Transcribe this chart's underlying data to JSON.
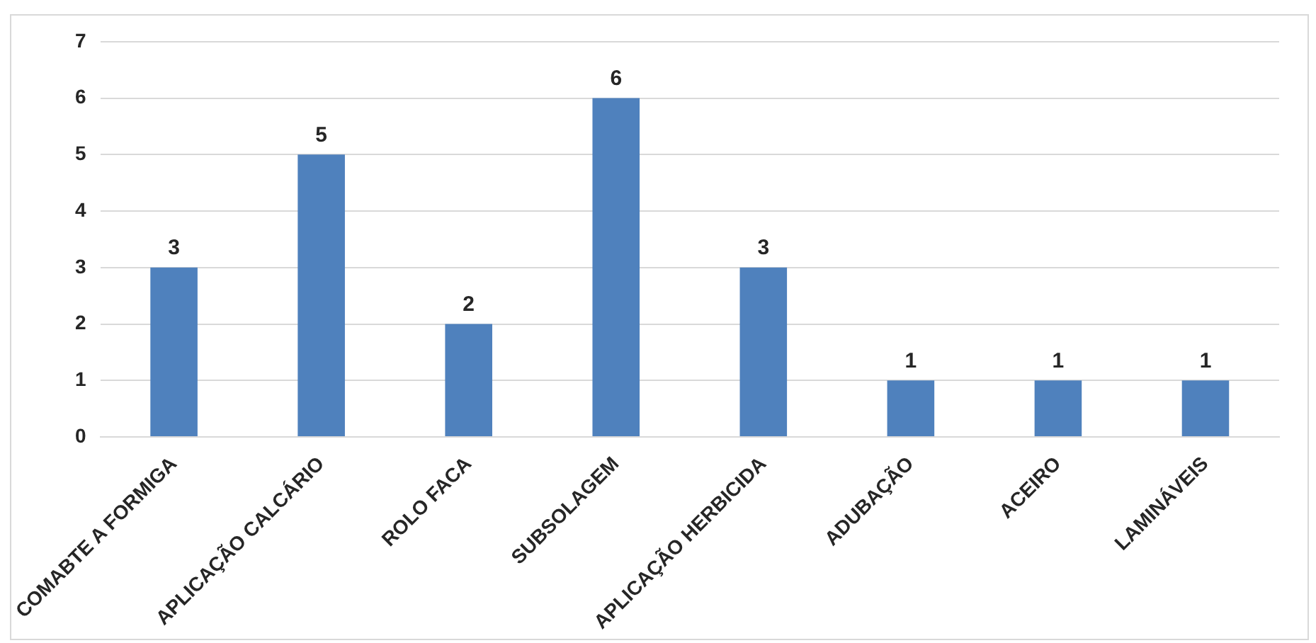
{
  "chart_data": {
    "type": "bar",
    "categories": [
      "COMABTE A FORMIGA",
      "APLICAÇÃO CALCÁRIO",
      "ROLO FACA",
      "SUBSOLAGEM",
      "APLICAÇÃO HERBICIDA",
      "ADUBAÇÃO",
      "ACEIRO",
      "LAMINÁVEIS"
    ],
    "values": [
      3,
      5,
      2,
      6,
      3,
      1,
      1,
      1
    ],
    "color": "#4f81bd",
    "ylim": [
      0,
      7
    ],
    "yticks": [
      0,
      1,
      2,
      3,
      4,
      5,
      6,
      7
    ],
    "grid": "y",
    "data_labels": true,
    "legend": false
  }
}
